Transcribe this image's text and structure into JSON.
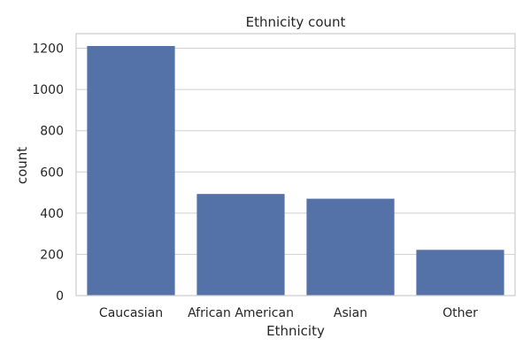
{
  "chart_data": {
    "type": "bar",
    "title": "Ethnicity count",
    "xlabel": "Ethnicity",
    "ylabel": "count",
    "categories": [
      "Caucasian",
      "African American",
      "Asian",
      "Other"
    ],
    "values": [
      1211,
      493,
      470,
      222
    ],
    "ylim": [
      0,
      1271
    ],
    "yticks": [
      0,
      200,
      400,
      600,
      800,
      1000,
      1200
    ],
    "grid": true,
    "colors": {
      "bar": "#5572a8",
      "grid": "#cfcfcf",
      "frame": "#cccccc",
      "text": "#262626"
    }
  }
}
